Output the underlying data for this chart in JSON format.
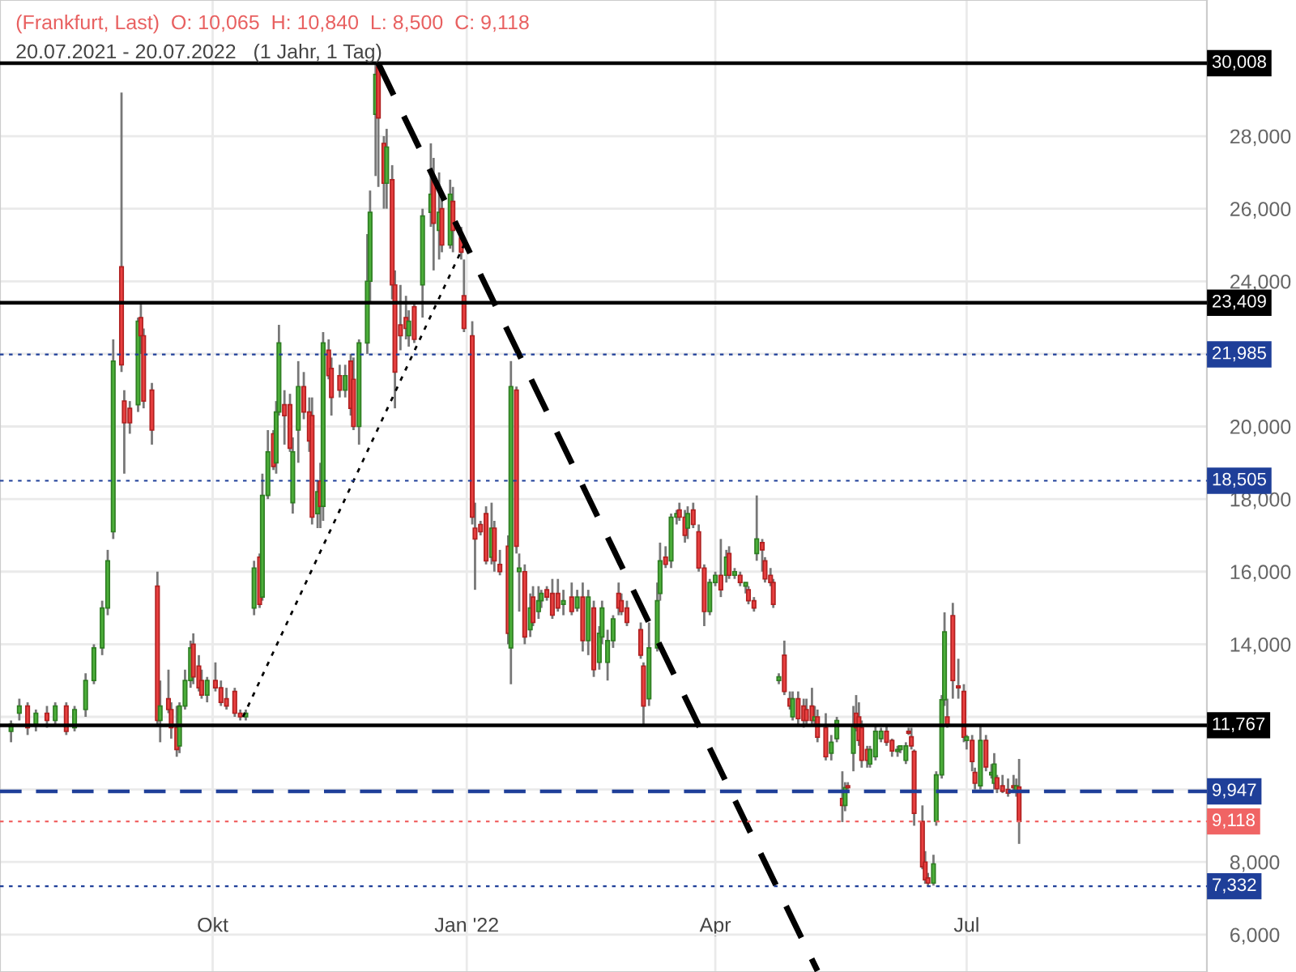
{
  "chart_data": {
    "type": "candlestick",
    "title": "(Frankfurt, Last)  O: 10,065  H: 10,840  L: 8,500  C: 9,118",
    "subtitle": "20.07.2021 - 20.07.2022   (1 Jahr, 1 Tag)",
    "x": [
      "2021-07-20",
      "2021-07-23",
      "2021-07-26",
      "2021-07-29",
      "2021-08-02",
      "2021-08-05",
      "2021-08-09",
      "2021-08-12",
      "2021-08-16",
      "2021-08-19",
      "2021-08-22",
      "2021-08-24",
      "2021-08-26",
      "2021-08-29",
      "2021-08-30",
      "2021-09-01",
      "2021-09-04",
      "2021-09-05",
      "2021-09-06",
      "2021-09-09",
      "2021-09-11",
      "2021-09-12",
      "2021-09-15",
      "2021-09-16",
      "2021-09-18",
      "2021-09-19",
      "2021-09-21",
      "2021-09-23",
      "2021-09-24",
      "2021-09-26",
      "2021-09-27",
      "2021-09-29",
      "2021-10-02",
      "2021-10-04",
      "2021-10-06",
      "2021-10-09",
      "2021-10-11",
      "2021-10-13",
      "2021-10-16",
      "2021-10-18",
      "2021-10-19",
      "2021-10-21",
      "2021-10-23",
      "2021-10-24",
      "2021-10-25",
      "2021-10-27",
      "2021-10-29",
      "2021-10-30",
      "2021-11-01",
      "2021-11-03",
      "2021-11-05",
      "2021-11-06",
      "2021-11-08",
      "2021-11-09",
      "2021-11-10",
      "2021-11-12",
      "2021-11-13",
      "2021-11-16",
      "2021-11-18",
      "2021-11-20",
      "2021-11-21",
      "2021-11-23",
      "2021-11-26",
      "2021-11-27",
      "2021-11-29",
      "2021-11-30",
      "2021-12-02",
      "2021-12-03",
      "2021-12-05",
      "2021-12-06",
      "2021-12-08",
      "2021-12-10",
      "2021-12-11",
      "2021-12-13",
      "2021-12-16",
      "2021-12-19",
      "2021-12-20",
      "2021-12-22",
      "2021-12-23",
      "2021-12-26",
      "2021-12-27",
      "2021-12-30",
      "2021-12-31",
      "2022-01-03",
      "2022-01-04",
      "2022-01-06",
      "2022-01-08",
      "2022-01-10",
      "2022-01-11",
      "2022-01-13",
      "2022-01-16",
      "2022-01-17",
      "2022-01-19",
      "2022-01-20",
      "2022-01-22",
      "2022-01-24",
      "2022-01-25",
      "2022-01-27",
      "2022-01-28",
      "2022-01-30",
      "2022-02-01",
      "2022-02-03",
      "2022-02-05",
      "2022-02-08",
      "2022-02-10",
      "2022-02-12",
      "2022-02-14",
      "2022-02-16",
      "2022-02-18",
      "2022-02-19",
      "2022-02-21",
      "2022-02-23",
      "2022-02-25",
      "2022-02-26",
      "2022-02-28",
      "2022-03-05",
      "2022-03-06",
      "2022-03-08",
      "2022-03-11",
      "2022-03-12",
      "2022-03-14",
      "2022-03-16",
      "2022-03-18",
      "2022-03-19",
      "2022-03-21",
      "2022-03-22",
      "2022-03-24",
      "2022-03-26",
      "2022-03-28",
      "2022-03-30",
      "2022-04-01",
      "2022-04-03",
      "2022-04-05",
      "2022-04-06",
      "2022-04-08",
      "2022-04-10",
      "2022-04-12",
      "2022-04-13",
      "2022-04-15",
      "2022-04-16",
      "2022-04-18",
      "2022-04-19",
      "2022-04-21",
      "2022-04-22",
      "2022-04-24",
      "2022-04-26",
      "2022-04-28",
      "2022-04-29",
      "2022-05-01",
      "2022-05-03",
      "2022-05-04",
      "2022-05-06",
      "2022-05-07",
      "2022-05-08",
      "2022-05-11",
      "2022-05-13",
      "2022-05-15",
      "2022-05-17",
      "2022-05-18",
      "2022-05-19",
      "2022-05-21",
      "2022-05-22",
      "2022-05-23",
      "2022-05-24",
      "2022-05-26",
      "2022-05-27",
      "2022-05-29",
      "2022-05-31",
      "2022-06-02",
      "2022-06-04",
      "2022-06-06",
      "2022-06-07",
      "2022-06-09",
      "2022-06-10",
      "2022-06-11",
      "2022-06-12",
      "2022-06-15",
      "2022-06-16",
      "2022-06-17",
      "2022-06-19",
      "2022-06-20",
      "2022-06-22",
      "2022-06-23",
      "2022-06-24",
      "2022-06-26",
      "2022-06-28",
      "2022-06-30",
      "2022-07-01",
      "2022-07-03",
      "2022-07-04",
      "2022-07-06",
      "2022-07-08",
      "2022-07-10",
      "2022-07-11",
      "2022-07-12",
      "2022-07-14",
      "2022-07-16",
      "2022-07-18",
      "2022-07-19",
      "2022-07-20"
    ],
    "ohlc": [
      [
        11600,
        11900,
        11300,
        11800
      ],
      [
        12100,
        12500,
        11900,
        12300
      ],
      [
        12300,
        12400,
        11500,
        11700
      ],
      [
        11800,
        12200,
        11600,
        12100
      ],
      [
        12100,
        12300,
        11700,
        11900
      ],
      [
        11900,
        12400,
        11800,
        12300
      ],
      [
        12300,
        12400,
        11500,
        11600
      ],
      [
        11700,
        12300,
        11600,
        12200
      ],
      [
        12200,
        13200,
        12000,
        13000
      ],
      [
        13000,
        14000,
        12900,
        13900
      ],
      [
        13900,
        15200,
        13700,
        15000
      ],
      [
        15000,
        16600,
        14800,
        16300
      ],
      [
        17100,
        22400,
        16900,
        21800
      ],
      [
        24400,
        29200,
        21500,
        21700
      ],
      [
        20700,
        21000,
        18700,
        20100
      ],
      [
        20500,
        20700,
        19800,
        20100
      ],
      [
        20600,
        23000,
        20400,
        22900
      ],
      [
        23000,
        23400,
        22000,
        22500
      ],
      [
        22500,
        22700,
        20500,
        20700
      ],
      [
        21000,
        21200,
        19500,
        19900
      ],
      [
        15600,
        16000,
        11800,
        11900
      ],
      [
        11900,
        13000,
        11300,
        12300
      ],
      [
        12500,
        13300,
        12100,
        12200
      ],
      [
        12200,
        12400,
        11400,
        11700
      ],
      [
        11700,
        12300,
        10900,
        11100
      ],
      [
        11200,
        12400,
        11000,
        12300
      ],
      [
        12300,
        13300,
        12200,
        13000
      ],
      [
        13000,
        14100,
        12800,
        13900
      ],
      [
        14000,
        14300,
        12900,
        13100
      ],
      [
        13400,
        13700,
        12700,
        12800
      ],
      [
        13000,
        13300,
        12500,
        12600
      ],
      [
        12600,
        13100,
        12400,
        13000
      ],
      [
        13000,
        13500,
        12700,
        12800
      ],
      [
        12800,
        13000,
        12300,
        12400
      ],
      [
        12500,
        12800,
        12200,
        12300
      ],
      [
        12700,
        12800,
        12000,
        12100
      ],
      [
        12100,
        12200,
        11900,
        12000
      ],
      [
        12000,
        12200,
        11900,
        12100
      ],
      [
        15000,
        16300,
        14800,
        16100
      ],
      [
        16400,
        16500,
        15000,
        15100
      ],
      [
        15300,
        18700,
        15200,
        18100
      ],
      [
        18100,
        19900,
        18000,
        19300
      ],
      [
        19800,
        19900,
        18800,
        18900
      ],
      [
        19000,
        20700,
        18700,
        20400
      ],
      [
        20400,
        22800,
        20300,
        22300
      ],
      [
        20600,
        21000,
        19500,
        20300
      ],
      [
        20600,
        20900,
        19300,
        19400
      ],
      [
        17900,
        19700,
        17600,
        19300
      ],
      [
        19900,
        21800,
        19000,
        21100
      ],
      [
        21100,
        21500,
        20200,
        20400
      ],
      [
        20400,
        20800,
        19300,
        19600
      ],
      [
        20300,
        20800,
        17300,
        17500
      ],
      [
        17600,
        18500,
        17200,
        18200
      ],
      [
        18500,
        19000,
        17200,
        17800
      ],
      [
        17800,
        22600,
        17400,
        22300
      ],
      [
        22100,
        22400,
        21300,
        21400
      ],
      [
        21600,
        21900,
        20300,
        20800
      ],
      [
        21400,
        21700,
        20800,
        21000
      ],
      [
        21000,
        21700,
        20800,
        21400
      ],
      [
        21800,
        22000,
        20300,
        20500
      ],
      [
        21300,
        21900,
        19900,
        20000
      ],
      [
        20000,
        22400,
        19500,
        22300
      ],
      [
        22300,
        25300,
        22000,
        24000
      ],
      [
        24000,
        26500,
        23400,
        25900
      ],
      [
        28600,
        30000,
        26900,
        29700
      ],
      [
        29900,
        30008,
        26600,
        28500
      ],
      [
        27800,
        28000,
        26000,
        26700
      ],
      [
        26700,
        28200,
        26000,
        27700
      ],
      [
        26800,
        27200,
        23500,
        23900
      ],
      [
        23900,
        24300,
        20500,
        21500
      ],
      [
        22800,
        23900,
        22100,
        22500
      ],
      [
        23000,
        23600,
        22400,
        22700
      ],
      [
        22500,
        23200,
        22200,
        22900
      ],
      [
        23300,
        23400,
        22300,
        22400
      ],
      [
        23900,
        26000,
        23000,
        25800
      ],
      [
        25900,
        27800,
        25500,
        26400
      ],
      [
        26800,
        27400,
        24300,
        25600
      ],
      [
        25400,
        27000,
        24600,
        25900
      ],
      [
        26000,
        26400,
        24800,
        25000
      ],
      [
        25000,
        26800,
        24900,
        26400
      ],
      [
        26200,
        26600,
        24800,
        25400
      ],
      [
        25200,
        25500,
        24600,
        24800
      ],
      [
        23600,
        24600,
        22600,
        22700
      ],
      [
        22500,
        22900,
        17300,
        17500
      ],
      [
        17200,
        17900,
        15500,
        16900
      ],
      [
        17300,
        17400,
        17000,
        17100
      ],
      [
        17600,
        17800,
        16200,
        16300
      ],
      [
        16400,
        17900,
        16200,
        17200
      ],
      [
        17200,
        17400,
        16000,
        16300
      ],
      [
        16200,
        16600,
        15900,
        16000
      ],
      [
        16700,
        17000,
        14000,
        14300
      ],
      [
        13900,
        21800,
        12900,
        21100
      ],
      [
        21000,
        21100,
        16500,
        16700
      ],
      [
        16000,
        16500,
        14900,
        16100
      ],
      [
        16000,
        16200,
        14000,
        14200
      ],
      [
        14400,
        15400,
        14200,
        15000
      ],
      [
        15300,
        15600,
        14500,
        14600
      ],
      [
        14900,
        15600,
        14700,
        15200
      ],
      [
        15200,
        15500,
        15000,
        15400
      ],
      [
        15500,
        15600,
        15200,
        15300
      ],
      [
        15400,
        15800,
        14700,
        14800
      ],
      [
        15400,
        15800,
        14900,
        15000
      ],
      [
        15100,
        15500,
        14800,
        15200
      ],
      [
        15300,
        15700,
        14800,
        14900
      ],
      [
        15000,
        15500,
        14900,
        15300
      ],
      [
        15300,
        15700,
        13800,
        14100
      ],
      [
        14100,
        15500,
        13700,
        15300
      ],
      [
        15000,
        15200,
        13100,
        13300
      ],
      [
        13500,
        14500,
        13300,
        14300
      ],
      [
        14200,
        15200,
        14000,
        15000
      ],
      [
        13500,
        14400,
        13000,
        14100
      ],
      [
        14100,
        14800,
        13900,
        14700
      ],
      [
        15400,
        15700,
        14800,
        15000
      ],
      [
        15200,
        15400,
        14800,
        14900
      ],
      [
        15000,
        15200,
        14500,
        14600
      ],
      [
        14400,
        14600,
        13600,
        13700
      ],
      [
        13400,
        13500,
        11770,
        12300
      ],
      [
        12500,
        14600,
        12300,
        13900
      ],
      [
        13900,
        15700,
        13800,
        15200
      ],
      [
        15400,
        16800,
        15200,
        16300
      ],
      [
        16400,
        16700,
        16100,
        16200
      ],
      [
        16300,
        17600,
        16100,
        17500
      ],
      [
        17500,
        17700,
        17300,
        17600
      ],
      [
        17700,
        17900,
        17400,
        17500
      ],
      [
        17500,
        17700,
        16800,
        17000
      ],
      [
        17200,
        17800,
        16900,
        17600
      ],
      [
        17700,
        17900,
        17200,
        17300
      ],
      [
        17100,
        17300,
        16000,
        16100
      ],
      [
        16100,
        16200,
        14500,
        14900
      ],
      [
        14900,
        15800,
        14800,
        15700
      ],
      [
        15700,
        16000,
        15600,
        15900
      ],
      [
        15900,
        16900,
        15300,
        15500
      ],
      [
        15900,
        16600,
        15700,
        16400
      ],
      [
        16500,
        16700,
        15800,
        15900
      ],
      [
        15900,
        16100,
        15800,
        16000
      ],
      [
        15900,
        16000,
        15600,
        15700
      ],
      [
        15600,
        15700,
        15400,
        15700
      ],
      [
        15500,
        15600,
        15100,
        15200
      ],
      [
        15200,
        15300,
        14900,
        15000
      ],
      [
        16500,
        18100,
        16300,
        16900
      ],
      [
        16800,
        16900,
        16000,
        16600
      ],
      [
        16300,
        16400,
        15700,
        15800
      ],
      [
        15900,
        16100,
        15600,
        15700
      ],
      [
        15700,
        15800,
        15000,
        15100
      ],
      [
        13000,
        13200,
        12900,
        13100
      ],
      [
        13700,
        14100,
        12600,
        12700
      ],
      [
        12500,
        12700,
        12200,
        12300
      ],
      [
        12000,
        12700,
        11900,
        12500
      ],
      [
        12500,
        12700,
        11800,
        11950
      ],
      [
        12300,
        12500,
        11700,
        11900
      ],
      [
        12200,
        12500,
        11800,
        11900
      ],
      [
        12300,
        12800,
        11800,
        11900
      ],
      [
        11900,
        12300,
        11800,
        12000
      ],
      [
        12000,
        12200,
        11300,
        11440
      ],
      [
        11700,
        12100,
        10800,
        10900
      ],
      [
        11000,
        11500,
        10800,
        11300
      ],
      [
        11400,
        12000,
        11300,
        11900
      ],
      [
        9750,
        10500,
        9100,
        9560
      ],
      [
        9560,
        10200,
        9400,
        10050
      ],
      [
        10100,
        10200,
        10000,
        10050
      ],
      [
        11000,
        12300,
        10500,
        11750
      ],
      [
        12100,
        12600,
        11600,
        11700
      ],
      [
        12000,
        12400,
        11200,
        11350
      ],
      [
        11700,
        11900,
        10600,
        10800
      ],
      [
        11100,
        11200,
        10600,
        10800
      ],
      [
        10700,
        11200,
        10600,
        11100
      ],
      [
        10900,
        11800,
        10800,
        11600
      ],
      [
        11400,
        11700,
        11300,
        11600
      ],
      [
        11600,
        11800,
        11200,
        11300
      ],
      [
        11350,
        11400,
        10900,
        11060
      ],
      [
        11050,
        11200,
        10900,
        11100
      ],
      [
        11100,
        11200,
        11000,
        11200
      ],
      [
        10800,
        11300,
        10700,
        11200
      ],
      [
        11600,
        11700,
        11500,
        11550
      ],
      [
        11450,
        11700,
        11100,
        11200
      ],
      [
        11050,
        11100,
        9000,
        9340
      ],
      [
        9120,
        9560,
        7800,
        7870
      ],
      [
        8000,
        8300,
        7400,
        7510
      ],
      [
        7560,
        7700,
        7332,
        7420
      ],
      [
        7420,
        8200,
        7350,
        7950
      ],
      [
        9120,
        10500,
        9000,
        10400
      ],
      [
        10400,
        12600,
        10300,
        12470
      ],
      [
        12470,
        14880,
        12300,
        14340
      ],
      [
        12000,
        12500,
        11700,
        11750
      ],
      [
        14790,
        15140,
        12500,
        13000
      ],
      [
        12850,
        13600,
        12500,
        12800
      ],
      [
        12700,
        12900,
        11300,
        11440
      ],
      [
        11350,
        11500,
        11100,
        11450
      ],
      [
        11350,
        11500,
        10500,
        10770
      ],
      [
        10470,
        10600,
        10000,
        10170
      ],
      [
        10100,
        11790,
        10000,
        11350
      ],
      [
        11350,
        11500,
        10500,
        10620
      ],
      [
        10400,
        10700,
        10300,
        10470
      ],
      [
        10170,
        11000,
        10000,
        10700
      ],
      [
        10320,
        10400,
        9900,
        10020
      ],
      [
        10100,
        10400,
        9900,
        9950
      ],
      [
        10000,
        10300,
        9800,
        9900
      ],
      [
        10100,
        10400,
        9900,
        10050
      ],
      [
        9950,
        10300,
        9800,
        10100
      ],
      [
        10065,
        10840,
        8500,
        9118
      ]
    ],
    "series": [
      {
        "type": "line",
        "x": [
          "2021-11-30",
          "2022-05-08"
        ],
        "values": [
          30000,
          5000
        ],
        "color": "#000000",
        "line_style": "dashed"
      },
      {
        "type": "line",
        "x": [
          "2021-10-12",
          "2021-12-31"
        ],
        "values": [
          12000,
          25000
        ],
        "color": "#000000",
        "line_style": "dotted"
      }
    ],
    "ref_lines": [
      {
        "axis": "y",
        "value": 30008,
        "label": "30,008",
        "color": "#000000",
        "line_style": "solid"
      },
      {
        "axis": "y",
        "value": 23409,
        "label": "23,409",
        "color": "#000000",
        "line_style": "solid"
      },
      {
        "axis": "y",
        "value": 21985,
        "label": "21,985",
        "color": "#1f3f99",
        "line_style": "dotted"
      },
      {
        "axis": "y",
        "value": 18505,
        "label": "18,505",
        "color": "#1f3f99",
        "line_style": "dotted"
      },
      {
        "axis": "y",
        "value": 11767,
        "label": "11,767",
        "color": "#000000",
        "line_style": "solid"
      },
      {
        "axis": "y",
        "value": 9947,
        "label": "9,947",
        "color": "#1f3f99",
        "line_style": "dashed"
      },
      {
        "axis": "y",
        "value": 9118,
        "label": "9,118",
        "color": "#f06464",
        "line_style": "dotted"
      },
      {
        "axis": "y",
        "value": 7332,
        "label": "7,332",
        "color": "#1f3f99",
        "line_style": "dotted"
      }
    ],
    "xlim": [
      "2021-07-16",
      "2022-09-26"
    ],
    "xticks": [
      {
        "value": "2021-10-01",
        "label": "Okt"
      },
      {
        "value": "2022-01-01",
        "label": "Jan '22"
      },
      {
        "value": "2022-04-01",
        "label": "Apr"
      },
      {
        "value": "2022-07-01",
        "label": "Jul"
      }
    ],
    "ylim": [
      4970,
      31750
    ],
    "yticks": [
      {
        "value": 6000,
        "label": "6,000"
      },
      {
        "value": 8000,
        "label": "8,000"
      },
      {
        "value": 10000,
        "label": null
      },
      {
        "value": 12000,
        "label": null
      },
      {
        "value": 14000,
        "label": "14,000"
      },
      {
        "value": 16000,
        "label": "16,000"
      },
      {
        "value": 18000,
        "label": "18,000"
      },
      {
        "value": 20000,
        "label": "20,000"
      },
      {
        "value": 22000,
        "label": null
      },
      {
        "value": 24000,
        "label": "24,000"
      },
      {
        "value": 26000,
        "label": "26,000"
      },
      {
        "value": 28000,
        "label": "28,000"
      }
    ],
    "grid": true
  }
}
